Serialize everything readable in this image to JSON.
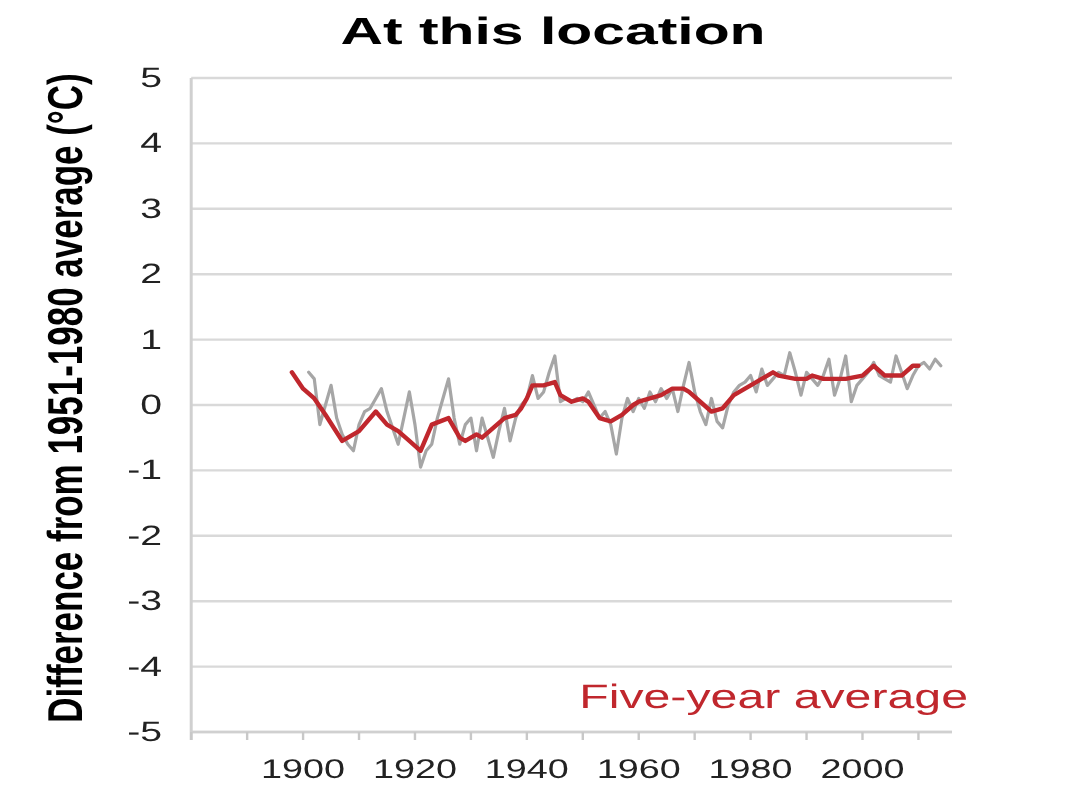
{
  "chart_data": {
    "type": "line",
    "title": "At this location",
    "ylabel": "Difference from 1951-1980 average (°C)",
    "xlim": [
      1880,
      2016
    ],
    "xticks": [
      {
        "value": 1880,
        "label": null
      },
      {
        "value": 1890,
        "label": null
      },
      1900,
      {
        "value": 1910,
        "label": null
      },
      1920,
      {
        "value": 1930,
        "label": null
      },
      1940,
      {
        "value": 1950,
        "label": null
      },
      1960,
      {
        "value": 1970,
        "label": null
      },
      1980,
      {
        "value": 1990,
        "label": null
      },
      2000,
      {
        "value": 2010,
        "label": null
      }
    ],
    "ylim": [
      -5,
      5
    ],
    "yticks": [
      -5,
      -4,
      -3,
      -2,
      -1,
      0,
      1,
      2,
      3,
      4,
      5
    ],
    "grid": "y",
    "legend": "bottom right",
    "series": [
      {
        "color": "#a6a6a6",
        "x": [
          1901,
          1902,
          1903,
          1904,
          1905,
          1906,
          1907,
          1908,
          1909,
          1910,
          1911,
          1912,
          1913,
          1914,
          1915,
          1916,
          1917,
          1918,
          1919,
          1920,
          1921,
          1922,
          1923,
          1924,
          1925,
          1926,
          1927,
          1928,
          1929,
          1930,
          1931,
          1932,
          1933,
          1934,
          1935,
          1936,
          1937,
          1938,
          1939,
          1940,
          1941,
          1942,
          1943,
          1944,
          1945,
          1946,
          1947,
          1948,
          1949,
          1950,
          1951,
          1952,
          1953,
          1954,
          1955,
          1956,
          1957,
          1958,
          1959,
          1960,
          1961,
          1962,
          1963,
          1964,
          1965,
          1966,
          1967,
          1968,
          1969,
          1970,
          1971,
          1972,
          1973,
          1974,
          1975,
          1976,
          1977,
          1978,
          1979,
          1980,
          1981,
          1982,
          1983,
          1984,
          1985,
          1986,
          1987,
          1988,
          1989,
          1990,
          1991,
          1992,
          1993,
          1994,
          1995,
          1996,
          1997,
          1998,
          1999,
          2000,
          2001,
          2002,
          2003,
          2004,
          2005,
          2006,
          2007,
          2008,
          2009,
          2010,
          2011,
          2012,
          2013,
          2014
        ],
        "values": [
          0.5,
          0.4,
          -0.3,
          0.0,
          0.3,
          -0.2,
          -0.45,
          -0.6,
          -0.7,
          -0.3,
          -0.1,
          -0.05,
          0.1,
          0.25,
          -0.1,
          -0.35,
          -0.6,
          -0.2,
          0.2,
          -0.3,
          -0.95,
          -0.7,
          -0.6,
          -0.2,
          0.1,
          0.4,
          -0.2,
          -0.6,
          -0.3,
          -0.2,
          -0.7,
          -0.2,
          -0.5,
          -0.8,
          -0.4,
          -0.05,
          -0.55,
          -0.2,
          0.0,
          0.1,
          0.45,
          0.1,
          0.2,
          0.5,
          0.75,
          0.05,
          0.1,
          0.05,
          0.1,
          0.05,
          0.2,
          0.0,
          -0.2,
          -0.1,
          -0.3,
          -0.75,
          -0.2,
          0.1,
          -0.1,
          0.1,
          -0.05,
          0.2,
          0.05,
          0.25,
          0.1,
          0.25,
          -0.1,
          0.3,
          0.65,
          0.2,
          -0.1,
          -0.3,
          0.1,
          -0.25,
          -0.35,
          0.0,
          0.2,
          0.3,
          0.35,
          0.45,
          0.2,
          0.55,
          0.3,
          0.4,
          0.5,
          0.45,
          0.8,
          0.5,
          0.15,
          0.5,
          0.4,
          0.3,
          0.45,
          0.7,
          0.15,
          0.4,
          0.75,
          0.05,
          0.3,
          0.4,
          0.5,
          0.65,
          0.45,
          0.4,
          0.35,
          0.75,
          0.5,
          0.25,
          0.45,
          0.6,
          0.65,
          0.55,
          0.7,
          0.6
        ]
      },
      {
        "name": "Five-year average",
        "color": "#c0272d",
        "x": [
          1898,
          1900,
          1902,
          1904,
          1907,
          1910,
          1913,
          1915,
          1917,
          1919,
          1921,
          1923,
          1926,
          1928,
          1929,
          1931,
          1932,
          1934,
          1936,
          1938,
          1939,
          1940,
          1941,
          1943,
          1945,
          1946,
          1948,
          1950,
          1951,
          1953,
          1955,
          1957,
          1959,
          1960,
          1962,
          1964,
          1966,
          1968,
          1969,
          1971,
          1973,
          1975,
          1977,
          1979,
          1981,
          1984,
          1985,
          1988,
          1990,
          1991,
          1993,
          1995,
          1997,
          2000,
          2002,
          2004,
          2006,
          2007,
          2009,
          2010
        ],
        "values": [
          0.5,
          0.25,
          0.1,
          -0.15,
          -0.55,
          -0.4,
          -0.1,
          -0.3,
          -0.4,
          -0.55,
          -0.7,
          -0.3,
          -0.2,
          -0.5,
          -0.55,
          -0.45,
          -0.5,
          -0.35,
          -0.2,
          -0.15,
          -0.05,
          0.1,
          0.3,
          0.3,
          0.35,
          0.15,
          0.05,
          0.1,
          0.05,
          -0.2,
          -0.25,
          -0.15,
          0.0,
          0.05,
          0.1,
          0.15,
          0.25,
          0.25,
          0.2,
          0.05,
          -0.1,
          -0.05,
          0.15,
          0.25,
          0.35,
          0.5,
          0.45,
          0.4,
          0.4,
          0.45,
          0.4,
          0.4,
          0.4,
          0.45,
          0.6,
          0.45,
          0.45,
          0.45,
          0.6,
          0.6
        ]
      }
    ]
  }
}
